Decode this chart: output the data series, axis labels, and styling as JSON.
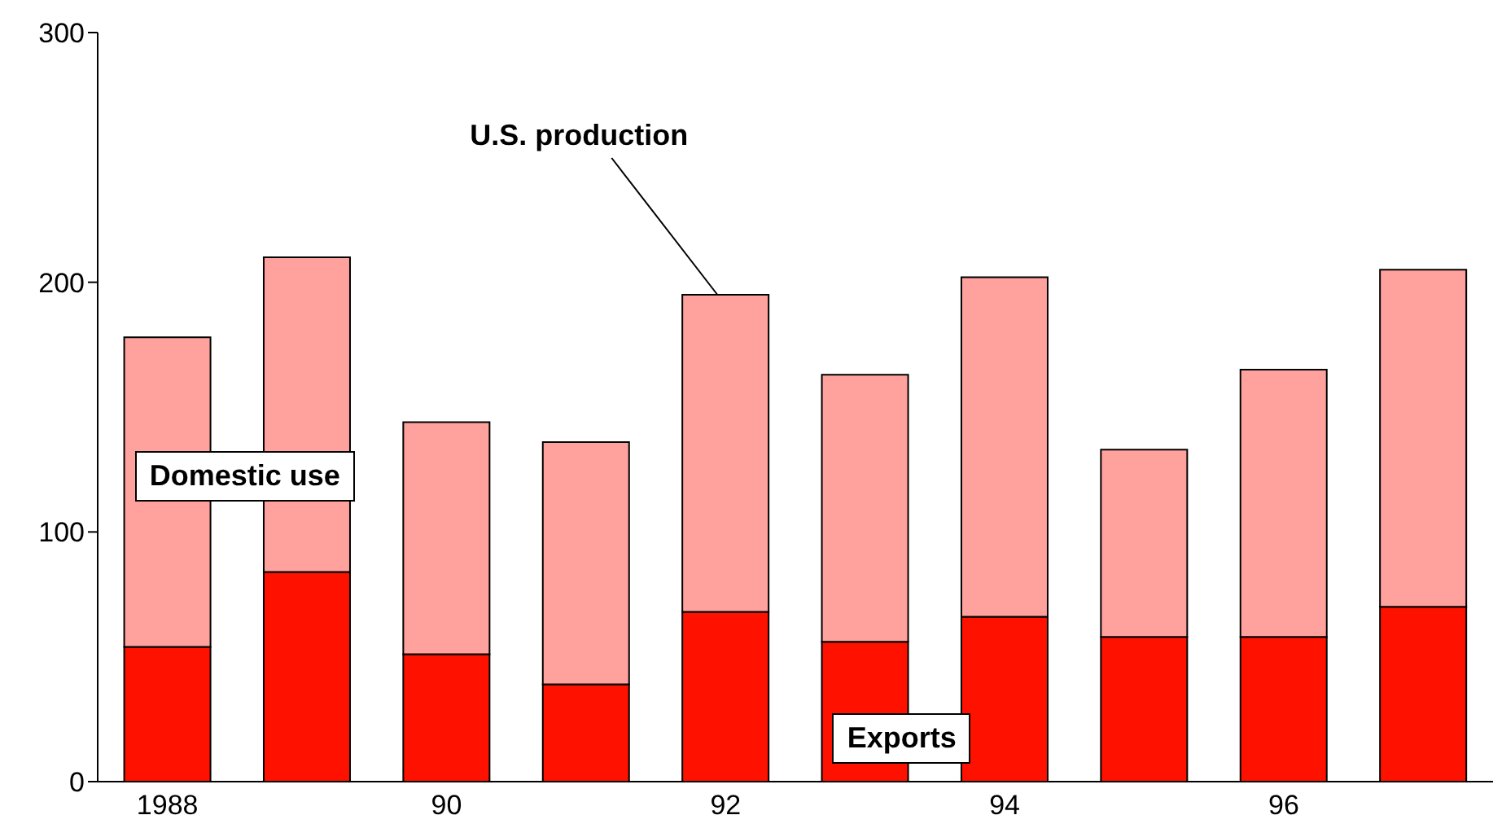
{
  "chart_data": {
    "type": "bar",
    "stacked": true,
    "categories": [
      "1988",
      null,
      "90",
      null,
      "92",
      null,
      "94",
      null,
      "96",
      null
    ],
    "series": [
      {
        "name": "Exports",
        "color": "#ff1100",
        "values": [
          54,
          84,
          51,
          39,
          68,
          56,
          66,
          58,
          58,
          70
        ]
      },
      {
        "name": "Domestic use",
        "color": "#ffa19c",
        "values": [
          124,
          126,
          93,
          97,
          127,
          107,
          136,
          75,
          107,
          135
        ]
      }
    ],
    "ylim": [
      0,
      300
    ],
    "yticks": [
      0,
      100,
      200,
      300
    ],
    "annotations": [
      {
        "text": "U.S. production",
        "x": "92",
        "y": 195
      }
    ]
  }
}
